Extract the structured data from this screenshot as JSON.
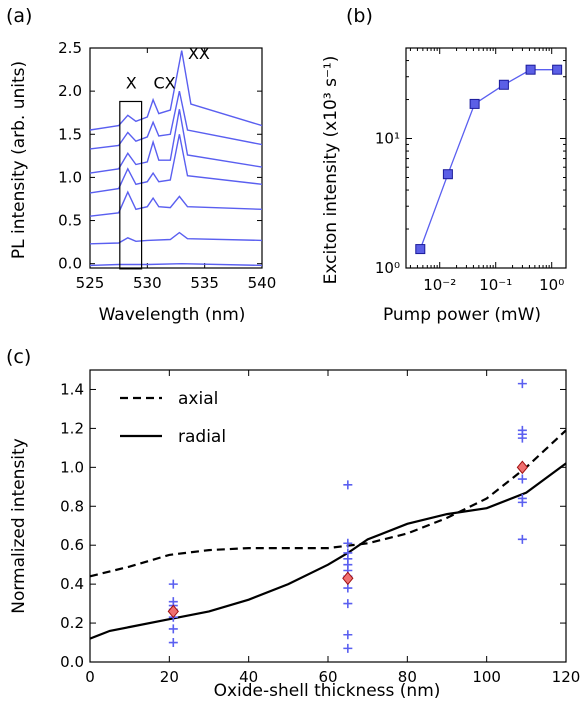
{
  "chart_data": [
    {
      "panel": "(a)",
      "type": "line",
      "xlabel": "Wavelength (nm)",
      "ylabel": "PL intensity (arb. units)",
      "xlim": [
        525,
        540
      ],
      "ylim": [
        -0.05,
        2.5
      ],
      "xticks": [
        "525",
        "530",
        "535",
        "540"
      ],
      "yticks": [
        "0.0",
        "0.5",
        "1.0",
        "1.5",
        "2.0",
        "2.5"
      ],
      "peak_labels": [
        "X",
        "CX",
        "XX"
      ],
      "series": [
        {
          "values": [
            {
              "x": 525,
              "y": -0.02
            },
            {
              "x": 527.5,
              "y": -0.01
            },
            {
              "x": 530,
              "y": -0.01
            },
            {
              "x": 533,
              "y": 0.0
            },
            {
              "x": 540,
              "y": -0.02
            }
          ]
        },
        {
          "values": [
            {
              "x": 525,
              "y": 0.23
            },
            {
              "x": 527.5,
              "y": 0.24
            },
            {
              "x": 528.3,
              "y": 0.3
            },
            {
              "x": 529,
              "y": 0.26
            },
            {
              "x": 530,
              "y": 0.27
            },
            {
              "x": 532,
              "y": 0.28
            },
            {
              "x": 532.8,
              "y": 0.36
            },
            {
              "x": 533.5,
              "y": 0.29
            },
            {
              "x": 540,
              "y": 0.27
            }
          ]
        },
        {
          "values": [
            {
              "x": 525,
              "y": 0.55
            },
            {
              "x": 527.5,
              "y": 0.59
            },
            {
              "x": 528.3,
              "y": 0.83
            },
            {
              "x": 529,
              "y": 0.63
            },
            {
              "x": 530,
              "y": 0.66
            },
            {
              "x": 530.5,
              "y": 0.76
            },
            {
              "x": 531,
              "y": 0.66
            },
            {
              "x": 532,
              "y": 0.65
            },
            {
              "x": 532.8,
              "y": 0.78
            },
            {
              "x": 533.5,
              "y": 0.66
            },
            {
              "x": 540,
              "y": 0.63
            }
          ]
        },
        {
          "values": [
            {
              "x": 525,
              "y": 0.82
            },
            {
              "x": 527.5,
              "y": 0.87
            },
            {
              "x": 528.3,
              "y": 1.1
            },
            {
              "x": 529,
              "y": 0.92
            },
            {
              "x": 530,
              "y": 0.95
            },
            {
              "x": 530.5,
              "y": 1.05
            },
            {
              "x": 531,
              "y": 0.95
            },
            {
              "x": 532,
              "y": 0.97
            },
            {
              "x": 532.8,
              "y": 1.5
            },
            {
              "x": 533.5,
              "y": 1.02
            },
            {
              "x": 540,
              "y": 0.92
            }
          ]
        },
        {
          "values": [
            {
              "x": 525,
              "y": 1.05
            },
            {
              "x": 527.5,
              "y": 1.1
            },
            {
              "x": 528.3,
              "y": 1.28
            },
            {
              "x": 529,
              "y": 1.15
            },
            {
              "x": 530,
              "y": 1.18
            },
            {
              "x": 530.5,
              "y": 1.41
            },
            {
              "x": 531,
              "y": 1.2
            },
            {
              "x": 532,
              "y": 1.2
            },
            {
              "x": 532.8,
              "y": 1.79
            },
            {
              "x": 533.5,
              "y": 1.26
            },
            {
              "x": 540,
              "y": 1.12
            }
          ]
        },
        {
          "values": [
            {
              "x": 525,
              "y": 1.33
            },
            {
              "x": 527.5,
              "y": 1.37
            },
            {
              "x": 528.3,
              "y": 1.52
            },
            {
              "x": 529,
              "y": 1.42
            },
            {
              "x": 530,
              "y": 1.47
            },
            {
              "x": 530.5,
              "y": 1.64
            },
            {
              "x": 531,
              "y": 1.48
            },
            {
              "x": 532,
              "y": 1.5
            },
            {
              "x": 532.8,
              "y": 2.0
            },
            {
              "x": 533.5,
              "y": 1.55
            },
            {
              "x": 540,
              "y": 1.38
            }
          ]
        },
        {
          "values": [
            {
              "x": 525,
              "y": 1.55
            },
            {
              "x": 527.5,
              "y": 1.6
            },
            {
              "x": 528.3,
              "y": 1.72
            },
            {
              "x": 529,
              "y": 1.65
            },
            {
              "x": 530,
              "y": 1.7
            },
            {
              "x": 530.5,
              "y": 1.9
            },
            {
              "x": 531,
              "y": 1.74
            },
            {
              "x": 532,
              "y": 1.78
            },
            {
              "x": 533,
              "y": 2.47
            },
            {
              "x": 533.8,
              "y": 1.85
            },
            {
              "x": 540,
              "y": 1.6
            }
          ]
        }
      ]
    },
    {
      "panel": "(b)",
      "type": "line",
      "xscale": "log",
      "yscale": "log",
      "xlabel": "Pump power (mW)",
      "ylabel": "Exciton intensity (x10³ s⁻¹)",
      "xlim": [
        0.0025,
        1.8
      ],
      "ylim": [
        1,
        50
      ],
      "xticks": [
        "10⁻²",
        "10⁻¹",
        "10⁰"
      ],
      "yticks": [
        "10⁰",
        "10¹"
      ],
      "x": [
        0.0045,
        0.014,
        0.042,
        0.14,
        0.42,
        1.25
      ],
      "values": [
        1.4,
        5.3,
        18.5,
        26,
        34,
        34
      ]
    },
    {
      "panel": "(c)",
      "type": "line",
      "xlabel": "Oxide-shell thickness (nm)",
      "ylabel": "Normalized intensity",
      "xlim": [
        0,
        120
      ],
      "ylim": [
        0.0,
        1.5
      ],
      "xticks": [
        "0",
        "20",
        "40",
        "60",
        "80",
        "100",
        "120"
      ],
      "yticks": [
        "0.0",
        "0.2",
        "0.4",
        "0.6",
        "0.8",
        "1.0",
        "1.2",
        "1.4"
      ],
      "legend": "top-left",
      "series": [
        {
          "name": "axial",
          "style": "dashed",
          "x": [
            0,
            10,
            20,
            30,
            40,
            50,
            60,
            70,
            80,
            90,
            100,
            110,
            120
          ],
          "values": [
            0.44,
            0.49,
            0.55,
            0.575,
            0.585,
            0.585,
            0.585,
            0.61,
            0.66,
            0.74,
            0.84,
            1.0,
            1.19
          ]
        },
        {
          "name": "radial",
          "style": "solid",
          "x": [
            0,
            5,
            10,
            20,
            30,
            40,
            50,
            60,
            65,
            70,
            80,
            90,
            100,
            110,
            120
          ],
          "values": [
            0.12,
            0.16,
            0.18,
            0.22,
            0.26,
            0.32,
            0.4,
            0.5,
            0.56,
            0.63,
            0.71,
            0.76,
            0.79,
            0.87,
            1.02
          ]
        }
      ],
      "scatter_points": [
        {
          "x": 21,
          "y": 0.4
        },
        {
          "x": 21,
          "y": 0.31
        },
        {
          "x": 21,
          "y": 0.29
        },
        {
          "x": 21,
          "y": 0.27
        },
        {
          "x": 21,
          "y": 0.23
        },
        {
          "x": 21,
          "y": 0.17
        },
        {
          "x": 21,
          "y": 0.1
        },
        {
          "x": 65,
          "y": 0.91
        },
        {
          "x": 65,
          "y": 0.61
        },
        {
          "x": 65,
          "y": 0.56
        },
        {
          "x": 65,
          "y": 0.53
        },
        {
          "x": 65,
          "y": 0.5
        },
        {
          "x": 65,
          "y": 0.47
        },
        {
          "x": 65,
          "y": 0.44
        },
        {
          "x": 65,
          "y": 0.38
        },
        {
          "x": 65,
          "y": 0.3
        },
        {
          "x": 65,
          "y": 0.14
        },
        {
          "x": 65,
          "y": 0.07
        },
        {
          "x": 109,
          "y": 1.43
        },
        {
          "x": 109,
          "y": 1.19
        },
        {
          "x": 109,
          "y": 1.17
        },
        {
          "x": 109,
          "y": 1.15
        },
        {
          "x": 109,
          "y": 1.0
        },
        {
          "x": 109,
          "y": 0.94
        },
        {
          "x": 109,
          "y": 0.84
        },
        {
          "x": 109,
          "y": 0.82
        },
        {
          "x": 109,
          "y": 0.63
        }
      ],
      "mean_points": [
        {
          "x": 21,
          "y": 0.26
        },
        {
          "x": 65,
          "y": 0.43
        },
        {
          "x": 109,
          "y": 1.0
        }
      ]
    }
  ],
  "colors": {
    "series": "#5a5ff0",
    "marker_fill": "#5b5fe6",
    "marker_edge": "#1a1a9a",
    "mean_fill": "#f07070",
    "mean_edge": "#a01010",
    "axis": "#000000"
  }
}
